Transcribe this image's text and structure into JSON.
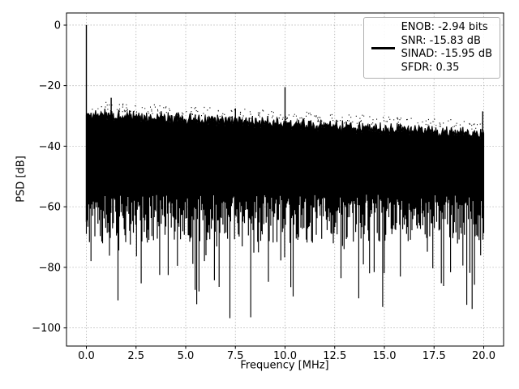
{
  "chart_data": {
    "type": "line",
    "title": "",
    "xlabel": "Frequency [MHz]",
    "ylabel": "PSD [dB]",
    "xlim": [
      -1,
      21
    ],
    "ylim": [
      -106,
      4
    ],
    "xticks": [
      0.0,
      2.5,
      5.0,
      7.5,
      10.0,
      12.5,
      15.0,
      17.5,
      20.0
    ],
    "xtick_labels": [
      "0.0",
      "2.5",
      "5.0",
      "7.5",
      "10.0",
      "12.5",
      "15.0",
      "17.5",
      "20.0"
    ],
    "yticks": [
      0,
      -20,
      -40,
      -60,
      -80,
      -100
    ],
    "ytick_labels": [
      "0",
      "−20",
      "−40",
      "−60",
      "−80",
      "−100"
    ],
    "grid": true,
    "grid_color": "#b0b0b0",
    "line_color": "#000000",
    "legend": {
      "position": "upper right",
      "lines": [
        "ENOB: -2.94 bits",
        "SNR: -15.83 dB",
        "SINAD: -15.95 dB",
        "SFDR: 0.35"
      ]
    },
    "metrics": {
      "enob_bits": -2.94,
      "snr_db": -15.83,
      "sinad_db": -15.95,
      "sfdr": 0.35
    },
    "series_description": "Dense noisy PSD spectrum from 0 to 20 MHz; solid noise band with upper envelope falling from about -29 dB to -35 dB, noise floor spikes reaching down to about -100 dB, fundamental spike at 0 MHz reaching 0 dB and spur at 10 MHz reaching about -20.5 dB",
    "noise": {
      "top_start_db": -28.5,
      "top_end_db": -35,
      "floor_max_db": -56,
      "floor_min_db": -72,
      "deep_dip_db": -100,
      "seed": 1337,
      "columns": 515
    },
    "peaks": [
      {
        "f_mhz": 0.0,
        "db": 0.0
      },
      {
        "f_mhz": 1.25,
        "db": -24.0
      },
      {
        "f_mhz": 7.5,
        "db": -27.5
      },
      {
        "f_mhz": 10.0,
        "db": -20.5
      },
      {
        "f_mhz": 13.7,
        "db": -33.0
      },
      {
        "f_mhz": 15.05,
        "db": -33.0
      },
      {
        "f_mhz": 16.35,
        "db": -33.5
      },
      {
        "f_mhz": 19.95,
        "db": -28.5
      }
    ]
  }
}
